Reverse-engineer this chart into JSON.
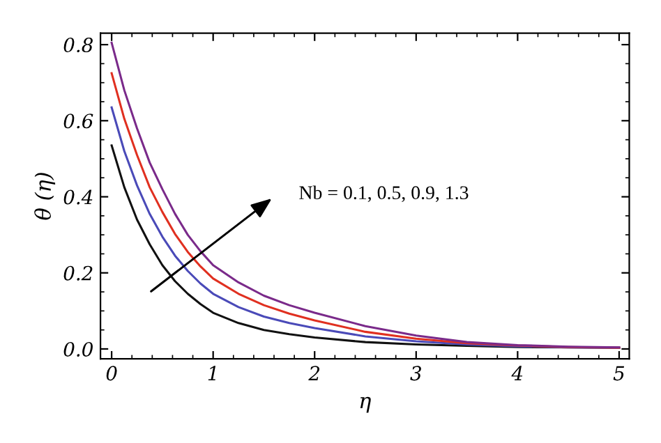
{
  "chart_data": {
    "type": "line",
    "xlabel": "η",
    "ylabel": "θ (η)",
    "x": [
      0,
      0.125,
      0.25,
      0.375,
      0.5,
      0.625,
      0.75,
      0.875,
      1,
      1.25,
      1.5,
      1.75,
      2,
      2.5,
      3,
      3.5,
      4,
      4.5,
      5
    ],
    "series": [
      {
        "color": "#111111",
        "values": [
          0.535,
          0.425,
          0.34,
          0.275,
          0.22,
          0.178,
          0.145,
          0.118,
          0.095,
          0.068,
          0.05,
          0.039,
          0.03,
          0.018,
          0.012,
          0.008,
          0.005,
          0.004,
          0.003
        ]
      },
      {
        "color": "#4a4ab8",
        "values": [
          0.635,
          0.52,
          0.43,
          0.355,
          0.295,
          0.245,
          0.205,
          0.172,
          0.145,
          0.11,
          0.085,
          0.068,
          0.055,
          0.033,
          0.02,
          0.012,
          0.007,
          0.004,
          0.003
        ]
      },
      {
        "color": "#e03020",
        "values": [
          0.725,
          0.605,
          0.51,
          0.425,
          0.36,
          0.302,
          0.255,
          0.217,
          0.185,
          0.145,
          0.115,
          0.093,
          0.075,
          0.045,
          0.027,
          0.015,
          0.009,
          0.005,
          0.003
        ]
      },
      {
        "color": "#7a2a8a",
        "values": [
          0.805,
          0.68,
          0.58,
          0.49,
          0.42,
          0.355,
          0.3,
          0.257,
          0.22,
          0.175,
          0.14,
          0.115,
          0.095,
          0.06,
          0.035,
          0.018,
          0.01,
          0.006,
          0.004
        ]
      }
    ],
    "xlim": [
      -0.11,
      5.1
    ],
    "ylim": [
      -0.026,
      0.83
    ],
    "xticks": [
      0,
      1,
      2,
      3,
      4,
      5
    ],
    "yticks": [
      {
        "value": 0,
        "label": "0.0"
      },
      0.2,
      0.4,
      0.6,
      0.8
    ],
    "annotations": [
      "Nb = 0.1, 0.5, 0.9, 1.3"
    ],
    "grid": false,
    "legend": false,
    "marker": "none",
    "line_style": "solid"
  }
}
